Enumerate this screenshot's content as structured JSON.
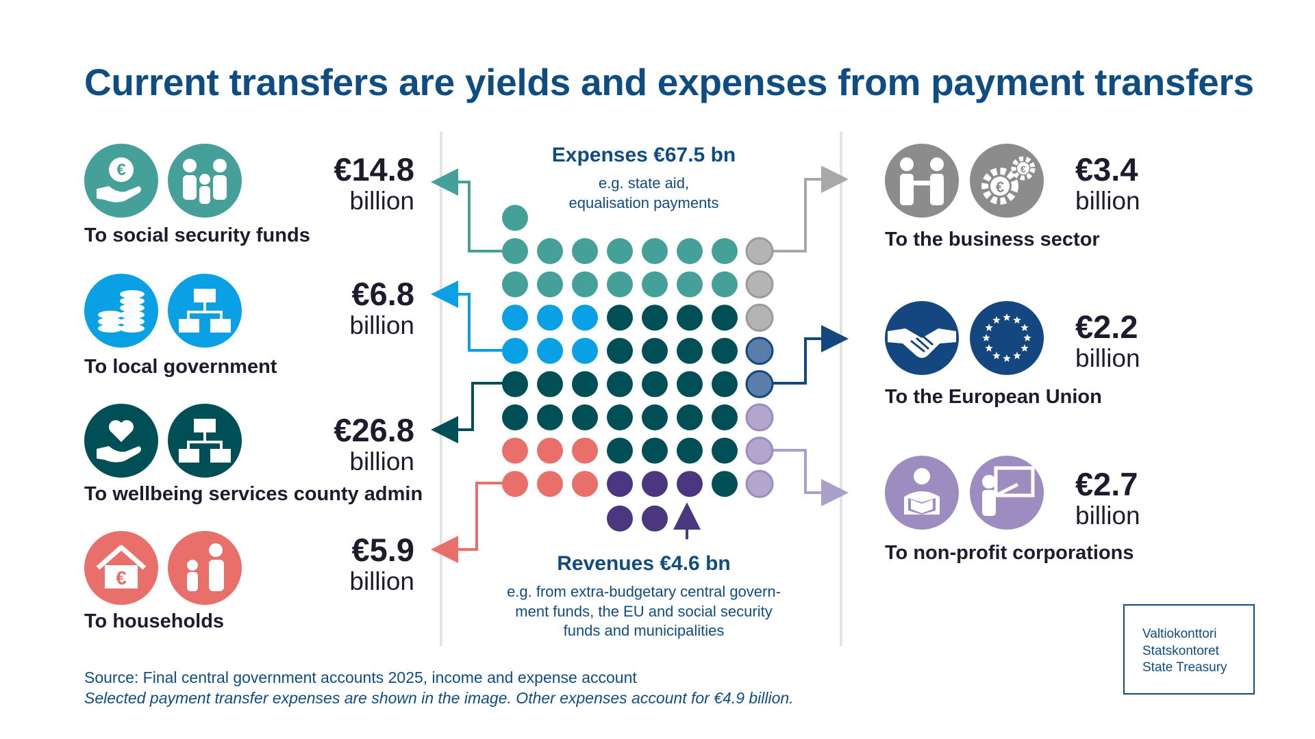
{
  "title": "Current transfers are yields and expenses from payment transfers",
  "colors": {
    "social": "#46a09a",
    "local": "#0aa0e6",
    "wellbeing": "#014f56",
    "households": "#e96f6a",
    "business": "#b4b4b4",
    "eu": "#5a7ea9",
    "nonprofit": "#b2a6cd",
    "revenue": "#4b3680",
    "title_blue": "#0f4c81"
  },
  "expenses": {
    "heading": "Expenses €67.5 bn",
    "subheading_line1": "e.g. state aid,",
    "subheading_line2": "equalisation payments"
  },
  "revenues": {
    "heading": "Revenues €4.6 bn",
    "subheading_line1": "e.g. from extra-budgetary central govern-",
    "subheading_line2": "ment funds, the EU and social security",
    "subheading_line3": "funds and municipalities"
  },
  "categories_left": [
    {
      "label": "To social security funds",
      "amount": "€14.8",
      "unit": "billion",
      "icons": [
        "euro-in-hand-icon",
        "family-icon"
      ]
    },
    {
      "label": "To local government",
      "amount": "€6.8",
      "unit": "billion",
      "icons": [
        "coin-stacks-icon",
        "org-chart-icon"
      ]
    },
    {
      "label": "To wellbeing services county admin",
      "amount": "€26.8",
      "unit": "billion",
      "icons": [
        "heart-in-hand-icon",
        "org-chart-icon"
      ]
    },
    {
      "label": "To households",
      "amount": "€5.9",
      "unit": "billion",
      "icons": [
        "house-euro-icon",
        "adult-child-icon"
      ]
    }
  ],
  "categories_right": [
    {
      "label": "To the business sector",
      "amount": "€3.4",
      "unit": "billion",
      "icons": [
        "handshake-people-icon",
        "euro-gears-icon"
      ]
    },
    {
      "label": "To the European Union",
      "amount": "€2.2",
      "unit": "billion",
      "icons": [
        "handshake-icon",
        "eu-flag-icon"
      ]
    },
    {
      "label": "To non-profit corporations",
      "amount": "€2.7",
      "unit": "billion",
      "icons": [
        "reader-icon",
        "teacher-icon"
      ]
    }
  ],
  "source": {
    "line1": "Source: Final central government accounts 2025, income and expense account",
    "line2": "Selected payment transfer expenses are shown in the image. Other expenses account for €4.9 billion."
  },
  "logo": {
    "line1": "Valtiokonttori",
    "line2": "Statskontoret",
    "line3": "State Treasury"
  }
}
